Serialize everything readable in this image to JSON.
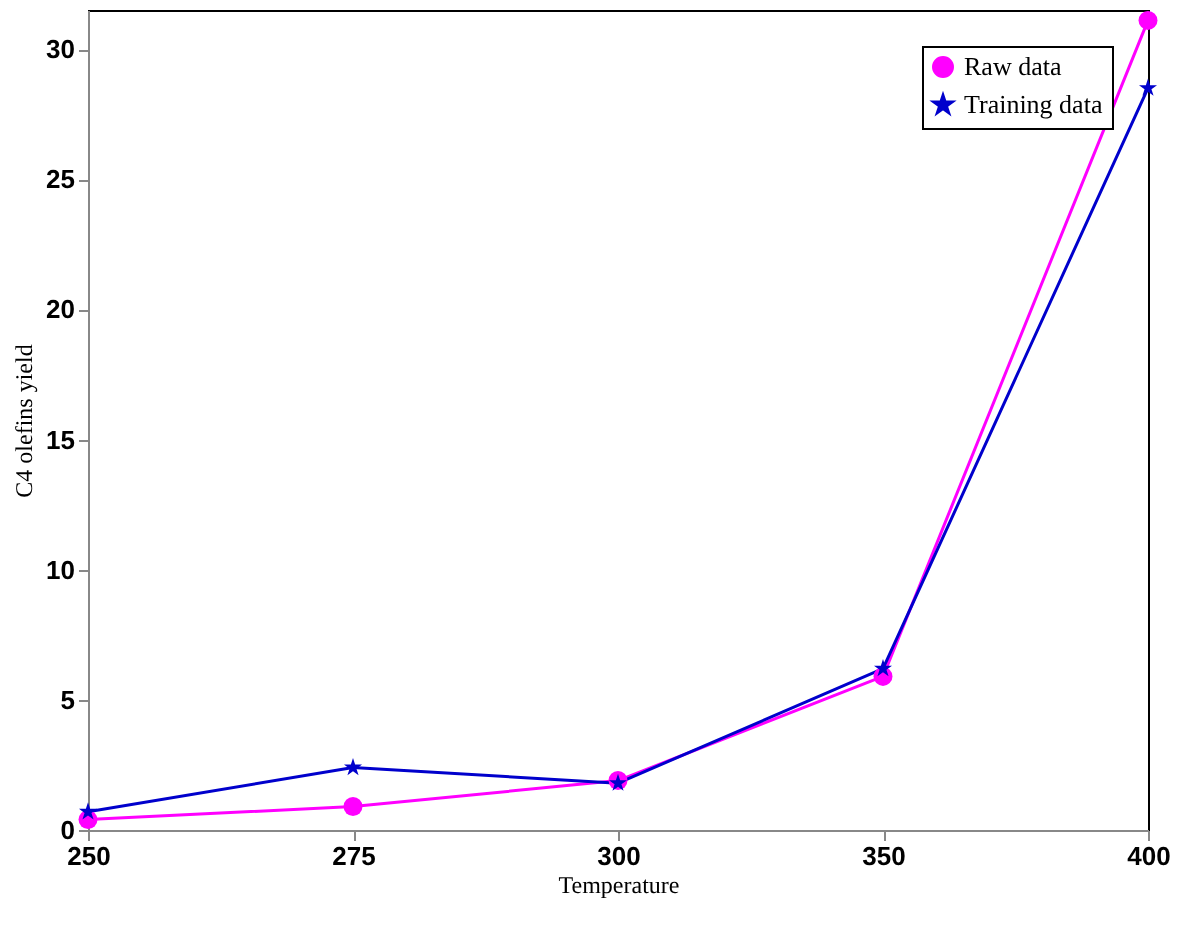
{
  "chart_data": {
    "type": "line",
    "xlabel": "Temperature",
    "ylabel": "C4 olefins yield",
    "categories": [
      "250",
      "275",
      "300",
      "350",
      "400"
    ],
    "series": [
      {
        "name": "Raw data",
        "color": "#ff00ff",
        "marker": "circle",
        "values": [
          0.4,
          0.9,
          1.9,
          5.9,
          31.1
        ]
      },
      {
        "name": "Training data",
        "color": "#0000cc",
        "marker": "star",
        "values": [
          0.7,
          2.4,
          1.8,
          6.2,
          28.5
        ]
      }
    ],
    "ylim": [
      0,
      31.5
    ],
    "yticks": [
      0,
      5,
      10,
      15,
      20,
      25,
      30
    ],
    "legend": "top right",
    "grid": false,
    "line_style": "solid"
  }
}
